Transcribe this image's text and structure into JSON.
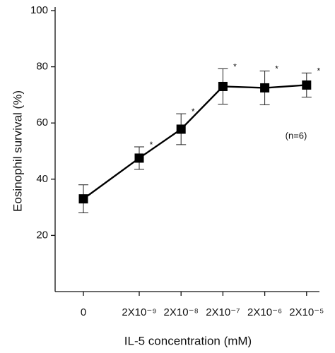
{
  "chart_data": {
    "type": "line",
    "title_y": "Eosinophil survival (%)",
    "x_label": "IL-5 concentration (mM)",
    "annotation": "(n=6)",
    "categories": [
      "0",
      "2X10⁻⁹",
      "2X10⁻⁸",
      "2X10⁻⁷",
      "2X10⁻⁶",
      "2X10⁻⁵"
    ],
    "series": [
      {
        "name": "Eosinophil survival",
        "color": "#000000",
        "values": [
          33,
          47.5,
          57.8,
          73,
          72.5,
          73.5
        ],
        "errors": [
          5,
          4,
          5.5,
          6.3,
          6,
          4.3
        ],
        "significance": [
          null,
          "*",
          "*",
          "*",
          "*",
          "*"
        ]
      }
    ],
    "ylim": [
      0,
      100
    ],
    "yticks": [
      20,
      40,
      60,
      80,
      100
    ]
  }
}
